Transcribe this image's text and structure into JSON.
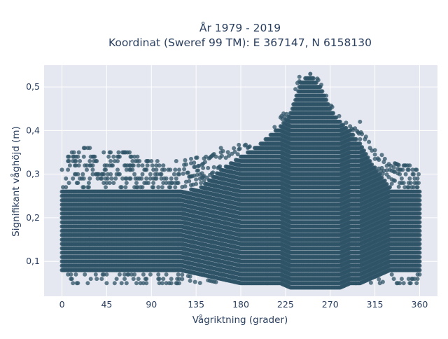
{
  "chart_data": {
    "type": "scatter",
    "title": [
      "År 1979 - 2019",
      "Koordinat (Sweref 99 TM): E 367147, N 6158130"
    ],
    "xlabel": "Vågriktning (grader)",
    "ylabel": "Signifikant våghöjd (m)",
    "xlim": [
      -18,
      378
    ],
    "ylim": [
      0.02,
      0.55
    ],
    "xticks": [
      0,
      45,
      90,
      135,
      180,
      225,
      270,
      315,
      360
    ],
    "xtick_labels": [
      "0",
      "45",
      "90",
      "135",
      "180",
      "225",
      "270",
      "315",
      "360"
    ],
    "yticks": [
      0.1,
      0.2,
      0.3,
      0.4,
      0.5
    ],
    "ytick_labels": [
      "0,1",
      "0,2",
      "0,3",
      "0,4",
      "0,5"
    ],
    "grid": true,
    "marker_color": "#2f5467",
    "plot_background": "#e5e8f0",
    "envelope": {
      "direction_deg": [
        0,
        20,
        40,
        60,
        80,
        100,
        120,
        140,
        160,
        180,
        200,
        210,
        220,
        230,
        240,
        250,
        260,
        270,
        280,
        290,
        300,
        310,
        320,
        330,
        340,
        350,
        360
      ],
      "dense_upper_m": [
        0.26,
        0.26,
        0.26,
        0.26,
        0.26,
        0.26,
        0.26,
        0.27,
        0.31,
        0.34,
        0.37,
        0.39,
        0.41,
        0.44,
        0.51,
        0.53,
        0.5,
        0.45,
        0.42,
        0.4,
        0.37,
        0.33,
        0.3,
        0.27,
        0.26,
        0.26,
        0.26
      ],
      "dense_lower_m": [
        0.08,
        0.08,
        0.08,
        0.08,
        0.08,
        0.08,
        0.08,
        0.07,
        0.06,
        0.05,
        0.05,
        0.05,
        0.05,
        0.04,
        0.04,
        0.04,
        0.04,
        0.04,
        0.04,
        0.05,
        0.05,
        0.06,
        0.07,
        0.08,
        0.08,
        0.08,
        0.08
      ],
      "outlier_max_m": [
        0.33,
        0.37,
        0.35,
        0.36,
        0.34,
        0.33,
        0.33,
        0.34,
        0.36,
        0.37,
        0.37,
        0.4,
        0.43,
        0.46,
        0.53,
        0.53,
        0.52,
        0.46,
        0.43,
        0.42,
        0.42,
        0.37,
        0.35,
        0.33,
        0.32,
        0.33,
        0.32
      ]
    }
  }
}
